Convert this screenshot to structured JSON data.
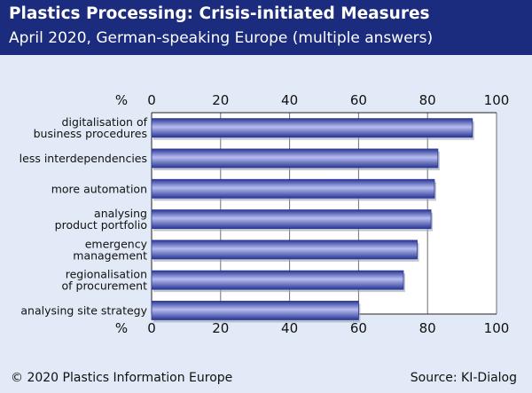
{
  "header": {
    "title": "Plastics Processing: Crisis-initiated Measures",
    "subtitle": "April 2020, German-speaking Europe (multiple answers)"
  },
  "footer": {
    "copyright": "© 2020 Plastics Information Europe",
    "source": "Source: KI-Dialog"
  },
  "colors": {
    "header_bg": "#1b2b7e",
    "page_bg": "#e1eaf6",
    "plot_bg": "#ffffff",
    "bar_dark": "#2a3794",
    "bar_light": "#b7bdf0",
    "grid": "#6f6f6f"
  },
  "chart_data": {
    "type": "bar",
    "orientation": "horizontal",
    "axis_unit": "%",
    "xlim": [
      0,
      100
    ],
    "ticks": [
      0,
      20,
      40,
      60,
      80,
      100
    ],
    "tick_labels": [
      "0",
      "20",
      "40",
      "60",
      "80",
      "100"
    ],
    "grid": true,
    "categories": [
      [
        "digitalisation of",
        "business procedures"
      ],
      [
        "less interdependencies"
      ],
      [
        "more automation"
      ],
      [
        "analysing",
        "product portfolio"
      ],
      [
        "emergency",
        "management"
      ],
      [
        "regionalisation",
        "of procurement"
      ],
      [
        "analysing site strategy"
      ]
    ],
    "values": [
      93,
      83,
      82,
      81,
      77,
      73,
      60
    ]
  }
}
